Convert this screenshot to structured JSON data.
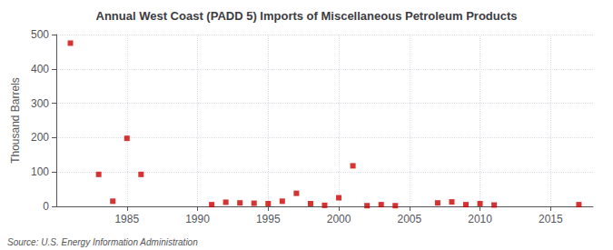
{
  "chart_data": {
    "type": "scatter",
    "title": "Annual West Coast (PADD 5) Imports of Miscellaneous Petroleum Products",
    "ylabel": "Thousand Barrels",
    "source": "Source: U.S. Energy Information Administration",
    "x": [
      1981,
      1983,
      1984,
      1985,
      1986,
      1991,
      1992,
      1993,
      1994,
      1995,
      1996,
      1997,
      1998,
      1999,
      2000,
      2001,
      2002,
      2003,
      2004,
      2007,
      2008,
      2009,
      2010,
      2011,
      2017
    ],
    "values": [
      475,
      93,
      15,
      198,
      93,
      5,
      12,
      10,
      9,
      8,
      15,
      38,
      8,
      3,
      25,
      118,
      2,
      5,
      2,
      10,
      13,
      5,
      8,
      4,
      5
    ],
    "color": "#cc0000",
    "marker": "square",
    "xlim": [
      1980,
      2018
    ],
    "xticks": [
      1985,
      1990,
      1995,
      2000,
      2005,
      2010,
      2015
    ],
    "ylim": [
      0,
      500
    ],
    "yticks": [
      0,
      100,
      200,
      300,
      400,
      500
    ],
    "grid": true
  }
}
